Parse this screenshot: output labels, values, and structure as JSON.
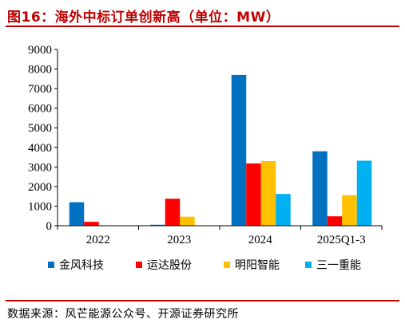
{
  "title": "图16：海外中标订单创新高（单位：MW）",
  "source": "数据来源：风芒能源公众号、开源证券研究所",
  "chart_data": {
    "type": "bar",
    "categories": [
      "2022",
      "2023",
      "2024",
      "2025Q1-3"
    ],
    "series": [
      {
        "name": "金风科技",
        "color": "#0070c0",
        "values": [
          1200,
          50,
          7700,
          3800
        ]
      },
      {
        "name": "运达股份",
        "color": "#ff0000",
        "values": [
          200,
          1380,
          3180,
          480
        ]
      },
      {
        "name": "明阳智能",
        "color": "#ffc000",
        "values": [
          0,
          460,
          3300,
          1560
        ]
      },
      {
        "name": "三一重能",
        "color": "#00b0f0",
        "values": [
          0,
          0,
          1620,
          3320
        ]
      }
    ],
    "yticks": [
      "0",
      "1000",
      "2000",
      "3000",
      "4000",
      "5000",
      "6000",
      "7000",
      "8000",
      "9000"
    ],
    "ylim": [
      0,
      9000
    ],
    "grid": false,
    "legend_position": "bottom"
  }
}
